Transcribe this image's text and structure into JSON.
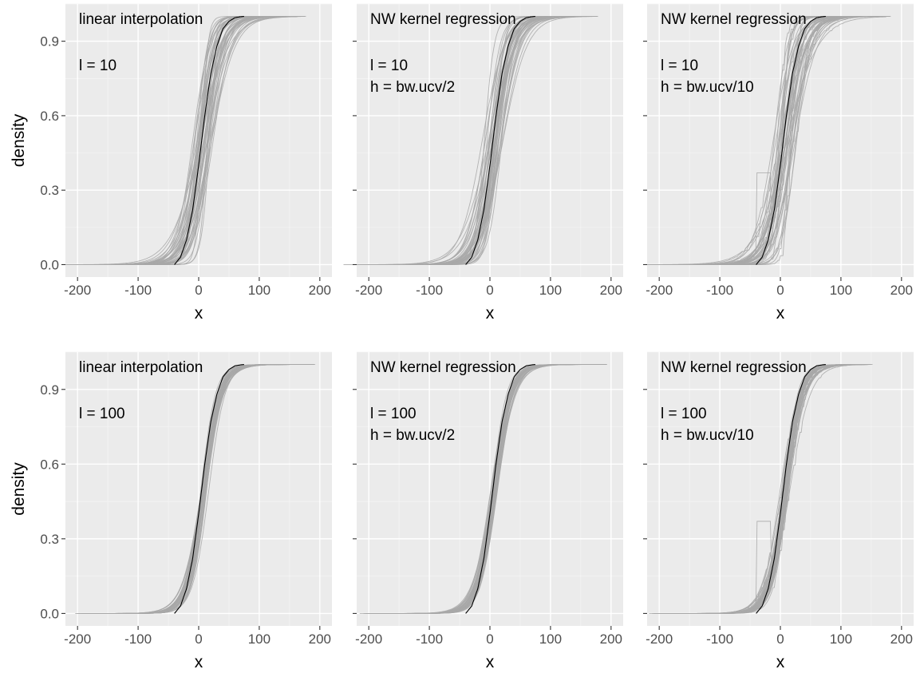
{
  "chart_data": {
    "type": "line",
    "layout": "2 rows x 3 columns",
    "xlabel": "x",
    "ylabel": "density",
    "xlim": [
      -220,
      220
    ],
    "ylim": [
      -0.05,
      1.05
    ],
    "x_ticks": [
      -200,
      -100,
      0,
      100,
      200
    ],
    "x_tick_labels": [
      "-200",
      "-100",
      "0",
      "100",
      "200"
    ],
    "y_ticks": [
      0.0,
      0.3,
      0.6,
      0.9
    ],
    "y_tick_labels": [
      "0.0",
      "0.3",
      "0.6",
      "0.9"
    ],
    "grid": true,
    "replicate_color": "#a8a8a8",
    "true_color": "#000000",
    "true_curve": {
      "x": [
        -40,
        -30,
        -20,
        -10,
        0,
        10,
        20,
        30,
        40,
        50,
        60,
        70,
        75
      ],
      "y": [
        0.0,
        0.03,
        0.1,
        0.22,
        0.4,
        0.6,
        0.77,
        0.88,
        0.95,
        0.98,
        0.995,
        0.999,
        1.0
      ]
    },
    "panels": [
      {
        "method": "linear interpolation",
        "l": "l = 10",
        "h": "",
        "replicates": 45,
        "spread": 1.0,
        "x_start": -200,
        "x_end": 180,
        "steps": 0
      },
      {
        "method": "NW kernel regression",
        "l": "l = 10",
        "h": "h = bw.ucv/2",
        "replicates": 45,
        "spread": 1.0,
        "x_start": -200,
        "x_end": 180,
        "steps": 0
      },
      {
        "method": "NW kernel regression",
        "l": "l = 10",
        "h": "h = bw.ucv/10",
        "replicates": 45,
        "spread": 1.1,
        "x_start": -200,
        "x_end": 185,
        "steps": 1
      },
      {
        "method": "linear interpolation",
        "l": "l = 100",
        "h": "",
        "replicates": 45,
        "spread": 0.3,
        "x_start": -180,
        "x_end": 195,
        "steps": 0
      },
      {
        "method": "NW kernel regression",
        "l": "l = 100",
        "h": "h = bw.ucv/2",
        "replicates": 45,
        "spread": 0.3,
        "x_start": -185,
        "x_end": 195,
        "steps": 0
      },
      {
        "method": "NW kernel regression",
        "l": "l = 100",
        "h": "h = bw.ucv/10",
        "replicates": 45,
        "spread": 0.35,
        "x_start": -185,
        "x_end": 155,
        "steps": 1
      }
    ]
  }
}
